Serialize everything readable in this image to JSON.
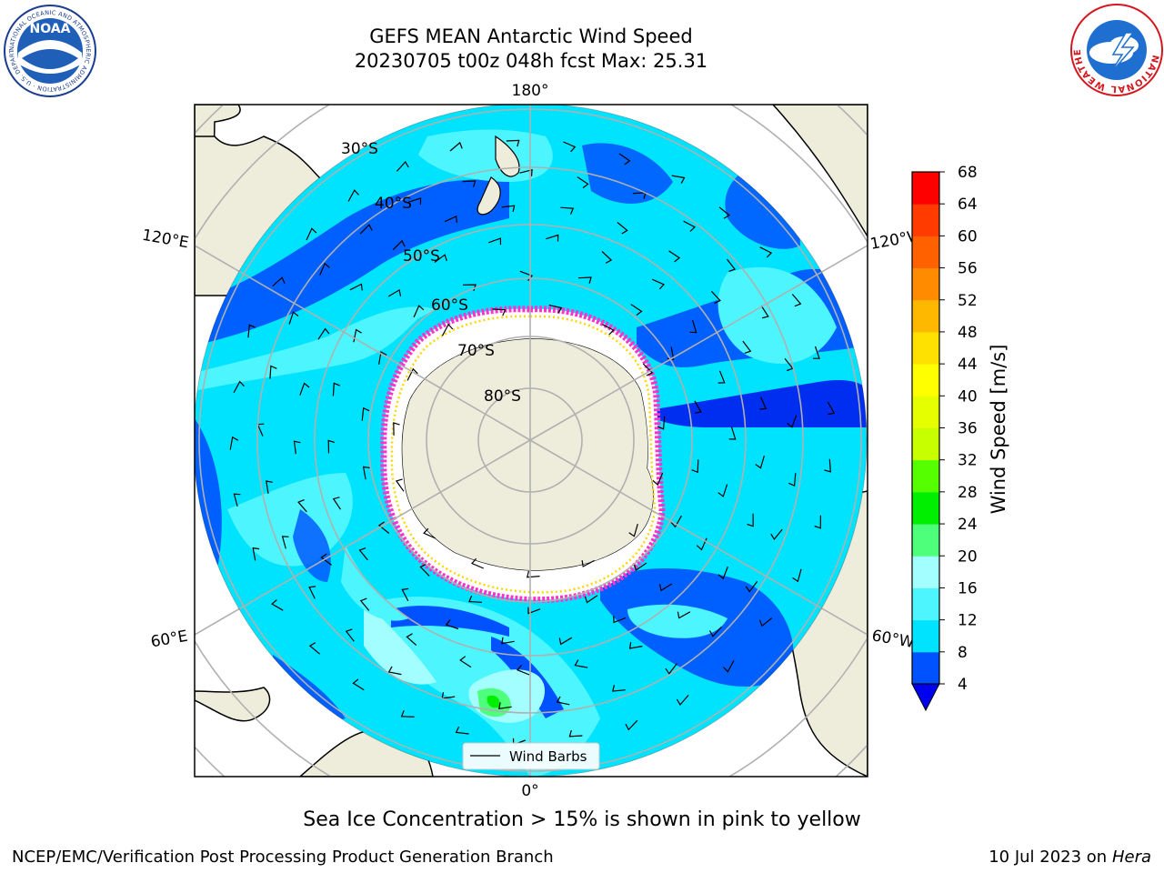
{
  "header": {
    "title": "GEFS MEAN Antarctic Wind Speed",
    "subtitle": "20230705 t00z 048h fcst   Max: 25.31"
  },
  "logos": {
    "left": {
      "name": "NOAA",
      "text": "NOAA",
      "ring_text": "NATIONAL OCEANIC AND ATMOSPHERIC ADMINISTRATION · U.S. DEPARTMENT OF COMMERCE"
    },
    "right": {
      "name": "National Weather Service",
      "ring_text": "NATIONAL WEATHER SERVICE"
    }
  },
  "map": {
    "projection": "south-polar-stereographic",
    "lat_labels": [
      "30°S",
      "40°S",
      "50°S",
      "60°S",
      "70°S",
      "80°S"
    ],
    "lon_labels": {
      "top": "180°",
      "bottom": "0°",
      "upper_left": "120°E",
      "lower_left": "60°E",
      "upper_right": "120°W",
      "lower_right": "60°W"
    },
    "legend_label": "Wind Barbs"
  },
  "colorbar": {
    "label": "Wind Speed [m/s]",
    "ticks": [
      "4",
      "8",
      "12",
      "16",
      "20",
      "24",
      "28",
      "32",
      "36",
      "40",
      "44",
      "48",
      "52",
      "56",
      "60",
      "64",
      "68"
    ],
    "colors": [
      "#0051ff",
      "#00e3ff",
      "#4df5ff",
      "#a3ffff",
      "#4dff7a",
      "#00ee00",
      "#55ff00",
      "#c8ff00",
      "#e6ff00",
      "#ffff00",
      "#ffe100",
      "#ffb800",
      "#ff8c00",
      "#ff6100",
      "#ff3b00",
      "#ff0000"
    ],
    "under_color": "#0000ee"
  },
  "caption": "Sea Ice Concentration > 15% is shown in pink to yellow",
  "footer": {
    "left": "NCEP/EMC/Verification Post Processing Product Generation Branch",
    "date": "10 Jul 2023 on ",
    "machine": "Hera"
  },
  "colors": {
    "land": "#eeecdb",
    "ocean_dark": "#0051ff",
    "ocean_cyan": "#00e3ff",
    "ocean_light": "#4df5ff",
    "sea_ice_pink": "#ff33cc",
    "sea_ice_yellow": "#ffd700"
  }
}
